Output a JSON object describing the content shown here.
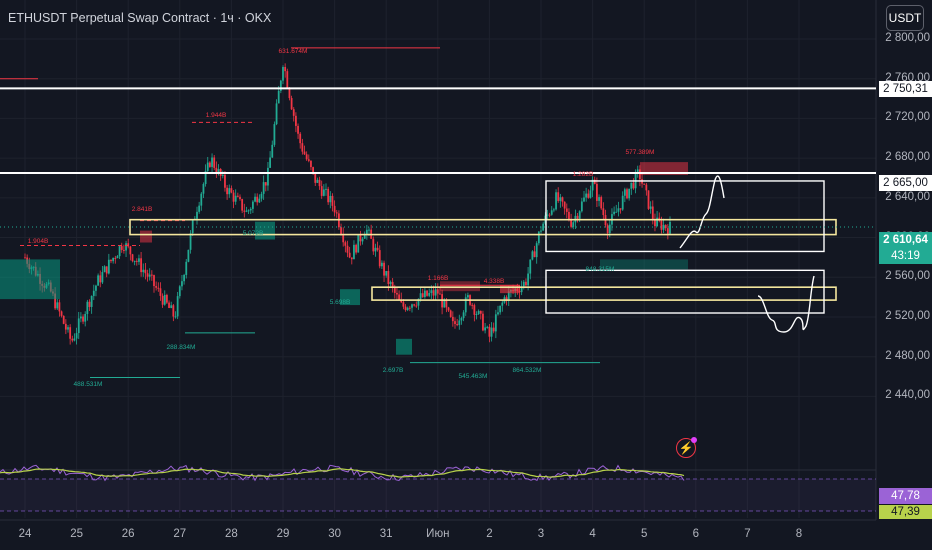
{
  "header": {
    "title": "ETHUSDT Perpetual Swap Contract · 1ч · OKX",
    "currency_button": "USDT"
  },
  "price_axis": {
    "ticks": [
      "2 800,00",
      "2 760,00",
      "2 720,00",
      "2 680,00",
      "2 640,00",
      "2 600,00",
      "2 560,00",
      "2 520,00",
      "2 480,00",
      "2 440,00"
    ],
    "range": [
      2420,
      2800
    ],
    "level_labels": [
      "2 750,31",
      "2 665,00"
    ],
    "last_price": "2 610,64",
    "countdown": "43:19"
  },
  "time_axis": {
    "ticks": [
      "24",
      "25",
      "26",
      "27",
      "28",
      "29",
      "30",
      "31",
      "Июн",
      "2",
      "3",
      "4",
      "5",
      "6",
      "7",
      "8"
    ]
  },
  "rsi_panel": {
    "value_main": "47,78",
    "value_signal": "47,39",
    "colors": {
      "main": "#9b63d6",
      "signal": "#b8d24b"
    }
  },
  "annotations": [
    {
      "text": "631.674M",
      "price": 2787,
      "color": "#f23645"
    },
    {
      "text": "1.944B",
      "price": 2722,
      "color": "#f23645"
    },
    {
      "text": "1.904B",
      "price": 2596,
      "color": "#f23645"
    },
    {
      "text": "2.841B",
      "price": 2628,
      "color": "#f23645"
    },
    {
      "text": "5.072B",
      "price": 2604,
      "color": "#22ab94"
    },
    {
      "text": "5.698B",
      "price": 2534,
      "color": "#22ab94"
    },
    {
      "text": "288.834M",
      "price": 2489,
      "color": "#22ab94"
    },
    {
      "text": "488.531M",
      "price": 2451,
      "color": "#22ab94"
    },
    {
      "text": "1.166B",
      "price": 2558,
      "color": "#f23645"
    },
    {
      "text": "4.338B",
      "price": 2555,
      "color": "#f23645"
    },
    {
      "text": "2.697B",
      "price": 2466,
      "color": "#22ab94"
    },
    {
      "text": "545.463M",
      "price": 2460,
      "color": "#22ab94"
    },
    {
      "text": "864.532M",
      "price": 2466,
      "color": "#22ab94"
    },
    {
      "text": "577.389M",
      "price": 2685,
      "color": "#f23645"
    },
    {
      "text": "1.282B",
      "price": 2663,
      "color": "#f23645"
    },
    {
      "text": "848.315M",
      "price": 2567,
      "color": "#22ab94"
    }
  ],
  "chart_data": {
    "type": "candlestick",
    "symbol": "ETHUSDT",
    "interval": "1ч",
    "ylim": [
      2420,
      2800
    ],
    "horizontal_levels": [
      2750.31,
      2665.0
    ],
    "zones": [
      {
        "name": "zone-upper",
        "low": 2603,
        "high": 2618
      },
      {
        "name": "zone-lower",
        "low": 2537,
        "high": 2550
      }
    ],
    "boxes": [
      {
        "name": "range-box-upper",
        "low": 2586,
        "high": 2657
      },
      {
        "name": "range-box-lower",
        "low": 2524,
        "high": 2567
      }
    ],
    "path_anchors": [
      [
        24.0,
        2580
      ],
      [
        24.5,
        2545
      ],
      [
        24.9,
        2495
      ],
      [
        25.4,
        2555
      ],
      [
        25.9,
        2595
      ],
      [
        26.4,
        2560
      ],
      [
        26.9,
        2520
      ],
      [
        27.3,
        2625
      ],
      [
        27.6,
        2680
      ],
      [
        27.9,
        2650
      ],
      [
        28.3,
        2625
      ],
      [
        28.7,
        2660
      ],
      [
        29.0,
        2778
      ],
      [
        29.3,
        2700
      ],
      [
        29.6,
        2660
      ],
      [
        30.0,
        2630
      ],
      [
        30.3,
        2580
      ],
      [
        30.6,
        2610
      ],
      [
        31.0,
        2560
      ],
      [
        31.3,
        2530
      ],
      [
        31.7,
        2540
      ],
      [
        32.0,
        2545
      ],
      [
        32.3,
        2510
      ],
      [
        32.6,
        2540
      ],
      [
        33.0,
        2500
      ],
      [
        33.3,
        2540
      ],
      [
        33.7,
        2555
      ],
      [
        34.0,
        2610
      ],
      [
        34.3,
        2640
      ],
      [
        34.6,
        2615
      ],
      [
        35.0,
        2655
      ],
      [
        35.3,
        2610
      ],
      [
        35.6,
        2640
      ],
      [
        35.9,
        2665
      ],
      [
        36.2,
        2615
      ],
      [
        36.5,
        2610
      ]
    ],
    "rsi": {
      "last": 47.78,
      "signal_last": 47.39
    }
  }
}
